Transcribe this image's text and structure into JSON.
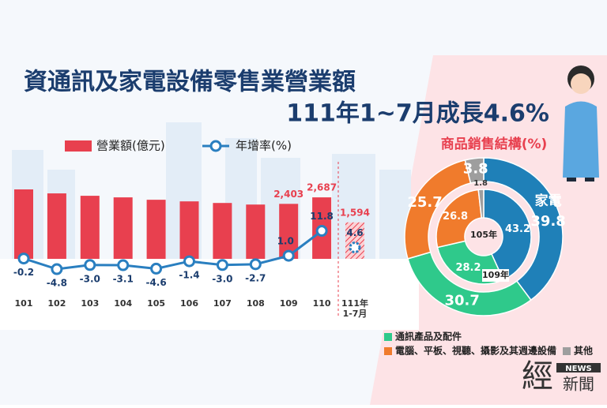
{
  "title": [
    "資通訊及家電設備零售業營業額",
    "111年1~7月成長4.6%"
  ],
  "logo": [
    "經",
    "NEWS",
    "新聞"
  ],
  "chart_data": [
    {
      "type": "combo",
      "categories": [
        "101",
        "102",
        "103",
        "104",
        "105",
        "106",
        "107",
        "108",
        "109",
        "110",
        "111年\n1-7月"
      ],
      "series": [
        {
          "name": "營業額(億元)",
          "type": "bar",
          "color": "#e8404f",
          "values": [
            3035,
            2861,
            2756,
            2687,
            2582,
            2512,
            2442,
            2373,
            2403,
            2687,
            1594
          ],
          "value_labels": [
            null,
            null,
            null,
            null,
            null,
            null,
            null,
            null,
            "2,403",
            "2,687",
            "1,594"
          ]
        },
        {
          "name": "年增率(%)",
          "type": "line",
          "color": "#2a7fc0",
          "values": [
            -0.2,
            -4.8,
            -3.0,
            -3.1,
            -4.6,
            -1.4,
            -3.0,
            -2.7,
            1.0,
            11.8,
            4.6
          ],
          "value_labels": [
            "-0.2",
            "-4.8",
            "-3.0",
            "-3.1",
            "-4.6",
            "-1.4",
            "-3.0",
            "-2.7",
            "1.0",
            "11.8",
            "4.6"
          ]
        }
      ]
    },
    {
      "type": "donut",
      "title": "商品銷售結構(%)",
      "categories": [
        "家電",
        "通訊產品及配件",
        "電腦、平板、視聽、攝影及其週邊設備",
        "其他"
      ],
      "colors": [
        "#1f80b8",
        "#2fc98b",
        "#f07b2c",
        "#9e9e9e"
      ],
      "series": [
        {
          "name": "109年",
          "values": [
            39.8,
            30.7,
            25.7,
            3.8
          ]
        },
        {
          "name": "105年",
          "values": [
            43.2,
            28.2,
            26.8,
            1.8
          ]
        }
      ]
    }
  ]
}
